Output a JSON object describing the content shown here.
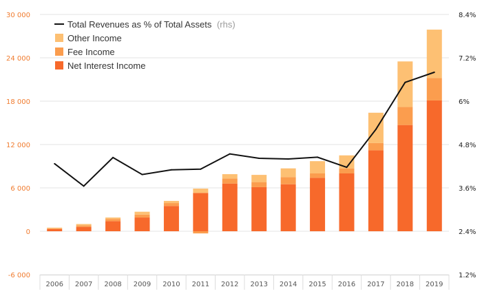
{
  "chart_data": {
    "type": "bar",
    "stacked": true,
    "categories": [
      "2006",
      "2007",
      "2008",
      "2009",
      "2010",
      "2011",
      "2012",
      "2013",
      "2014",
      "2015",
      "2016",
      "2017",
      "2018",
      "2019"
    ],
    "series": [
      {
        "name": "Net Interest Income",
        "color": "#f7692b",
        "values": [
          300,
          600,
          1400,
          1900,
          3500,
          5300,
          6600,
          6100,
          6500,
          7400,
          8000,
          11200,
          14700,
          18100
        ]
      },
      {
        "name": "Fee Income",
        "color": "#fb9d4e",
        "values": [
          100,
          200,
          300,
          400,
          400,
          -300,
          700,
          700,
          1000,
          600,
          700,
          1000,
          2500,
          3100
        ]
      },
      {
        "name": "Other Income",
        "color": "#fdc073",
        "values": [
          100,
          200,
          200,
          400,
          300,
          600,
          600,
          1000,
          1200,
          1700,
          1800,
          4200,
          6300,
          6700
        ]
      }
    ],
    "line": {
      "name": "Total Revenues as % of Total Assets",
      "name_note": "(rhs)",
      "axis": "right",
      "color": "#111111",
      "values": [
        4.27,
        3.65,
        4.44,
        3.97,
        4.1,
        4.12,
        4.54,
        4.42,
        4.4,
        4.45,
        4.17,
        5.22,
        6.52,
        6.8
      ]
    },
    "left_axis": {
      "min": -6000,
      "max": 30000,
      "ticks": [
        "-6 000",
        "0",
        "6 000",
        "12 000",
        "18 000",
        "24 000",
        "30 000"
      ],
      "tick_color": "#f07b2e"
    },
    "right_axis": {
      "min": 1.2,
      "max": 8.4,
      "ticks": [
        "1.2%",
        "2.4%",
        "3.6%",
        "4.8%",
        "6%",
        "7.2%",
        "8.4%"
      ]
    },
    "grid": "horizontal",
    "legend_position": "top-left",
    "title": "",
    "xlabel": "",
    "ylabel": ""
  }
}
